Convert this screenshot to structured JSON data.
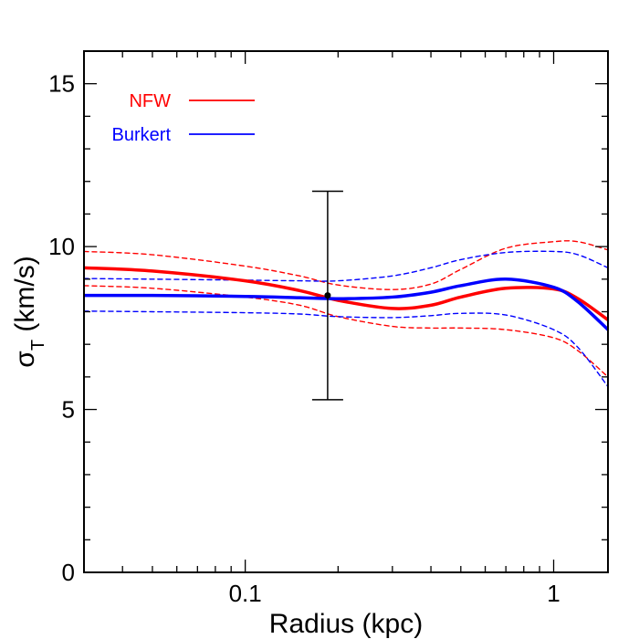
{
  "chart_data": {
    "type": "line",
    "xscale": "log",
    "xlim": [
      0.03,
      1.5
    ],
    "ylim": [
      0,
      16
    ],
    "xlabel": "Radius (kpc)",
    "ylabel_main": "σ",
    "ylabel_sub": "T",
    "ylabel_units": " (km/s)",
    "yticks": [
      0,
      5,
      10,
      15
    ],
    "yticks_minor_step": 1,
    "xticks": [
      {
        "value": 0.1,
        "label": "0.1"
      },
      {
        "value": 1,
        "label": "1"
      }
    ],
    "grid": false,
    "legend": {
      "placement": "top-left",
      "entries": [
        {
          "label": "NFW",
          "color": "#ff0000"
        },
        {
          "label": "Burkert",
          "color": "#0000ff"
        }
      ]
    },
    "series": [
      {
        "name": "NFW",
        "color": "#ff0000",
        "style": "solid",
        "x": [
          0.03,
          0.05,
          0.1,
          0.15,
          0.2,
          0.3,
          0.4,
          0.5,
          0.7,
          1.0,
          1.2,
          1.5
        ],
        "y": [
          9.35,
          9.25,
          8.95,
          8.65,
          8.35,
          8.1,
          8.2,
          8.45,
          8.72,
          8.7,
          8.4,
          7.75
        ]
      },
      {
        "name": "NFW upper",
        "color": "#ff0000",
        "style": "dashed",
        "x": [
          0.03,
          0.05,
          0.1,
          0.15,
          0.2,
          0.3,
          0.4,
          0.5,
          0.7,
          1.0,
          1.2,
          1.5
        ],
        "y": [
          9.85,
          9.75,
          9.4,
          9.1,
          8.82,
          8.68,
          8.85,
          9.3,
          9.95,
          10.15,
          10.15,
          9.9
        ]
      },
      {
        "name": "NFW lower",
        "color": "#ff0000",
        "style": "dashed",
        "x": [
          0.03,
          0.05,
          0.1,
          0.15,
          0.2,
          0.3,
          0.4,
          0.5,
          0.7,
          1.0,
          1.2,
          1.5
        ],
        "y": [
          8.8,
          8.72,
          8.45,
          8.2,
          7.85,
          7.55,
          7.5,
          7.5,
          7.45,
          7.2,
          6.8,
          6.0
        ]
      },
      {
        "name": "Burkert",
        "color": "#0000ff",
        "style": "solid",
        "x": [
          0.03,
          0.05,
          0.1,
          0.15,
          0.2,
          0.3,
          0.4,
          0.5,
          0.7,
          1.0,
          1.2,
          1.5
        ],
        "y": [
          8.5,
          8.5,
          8.47,
          8.43,
          8.4,
          8.45,
          8.6,
          8.8,
          9.0,
          8.75,
          8.3,
          7.45
        ]
      },
      {
        "name": "Burkert upper",
        "color": "#0000ff",
        "style": "dashed",
        "x": [
          0.03,
          0.05,
          0.1,
          0.15,
          0.2,
          0.3,
          0.4,
          0.5,
          0.7,
          1.0,
          1.2,
          1.5
        ],
        "y": [
          9.02,
          9.0,
          8.97,
          8.95,
          8.95,
          9.1,
          9.35,
          9.6,
          9.82,
          9.85,
          9.75,
          9.35
        ]
      },
      {
        "name": "Burkert lower",
        "color": "#0000ff",
        "style": "dashed",
        "x": [
          0.03,
          0.05,
          0.1,
          0.15,
          0.2,
          0.3,
          0.4,
          0.5,
          0.7,
          1.0,
          1.2,
          1.5
        ],
        "y": [
          8.02,
          8.0,
          7.97,
          7.93,
          7.85,
          7.82,
          7.88,
          7.95,
          7.9,
          7.45,
          6.9,
          5.7
        ]
      }
    ],
    "data_points": [
      {
        "x": 0.185,
        "y": 8.5,
        "yerr_low": 5.3,
        "yerr_high": 11.7,
        "color": "#000000"
      }
    ]
  }
}
